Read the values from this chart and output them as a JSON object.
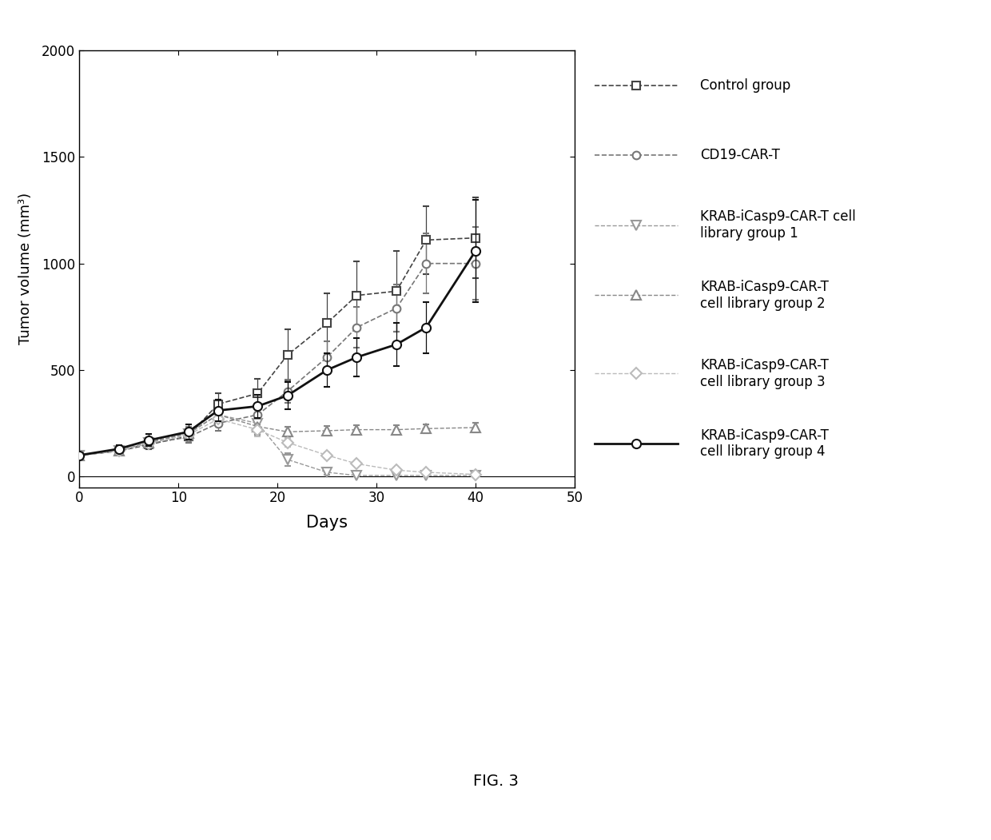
{
  "title": "",
  "xlabel": "Days",
  "ylabel": "Tumor volume (mm³)",
  "xlim": [
    0,
    50
  ],
  "ylim": [
    -50,
    2000
  ],
  "yticks": [
    0,
    500,
    1000,
    1500,
    2000
  ],
  "xticks": [
    0,
    10,
    20,
    30,
    40,
    50
  ],
  "control": {
    "x": [
      0,
      4,
      7,
      11,
      14,
      18,
      21,
      25,
      28,
      32,
      35,
      40
    ],
    "y": [
      100,
      120,
      150,
      190,
      340,
      390,
      570,
      720,
      850,
      870,
      1110,
      1120
    ],
    "yerr": [
      8,
      15,
      20,
      30,
      50,
      70,
      120,
      140,
      160,
      190,
      160,
      190
    ],
    "label": "Control group",
    "color": "#444444",
    "marker": "s",
    "linestyle": "--",
    "linewidth": 1.2,
    "markersize": 7
  },
  "cd19": {
    "x": [
      0,
      4,
      7,
      11,
      14,
      18,
      21,
      25,
      28,
      32,
      35,
      40
    ],
    "y": [
      100,
      120,
      155,
      185,
      250,
      290,
      400,
      560,
      700,
      790,
      1000,
      1000
    ],
    "yerr": [
      8,
      15,
      20,
      28,
      35,
      45,
      55,
      75,
      95,
      110,
      140,
      170
    ],
    "label": "CD19-CAR-T",
    "color": "#777777",
    "marker": "o",
    "linestyle": "--",
    "linewidth": 1.2,
    "markersize": 7
  },
  "group1": {
    "x": [
      0,
      4,
      7,
      11,
      14,
      18,
      21,
      25,
      28,
      32,
      35,
      40
    ],
    "y": [
      100,
      120,
      160,
      200,
      290,
      250,
      80,
      20,
      5,
      5,
      5,
      5
    ],
    "yerr": [
      8,
      15,
      22,
      30,
      45,
      50,
      30,
      10,
      3,
      3,
      3,
      3
    ],
    "label": "KRAB-iCasp9-CAR-T cell\nlibrary group 1",
    "color": "#999999",
    "marker": "v",
    "linestyle": "--",
    "linewidth": 1.0,
    "markersize": 8
  },
  "group2": {
    "x": [
      0,
      4,
      7,
      11,
      14,
      18,
      21,
      25,
      28,
      32,
      35,
      40
    ],
    "y": [
      100,
      120,
      160,
      205,
      290,
      235,
      210,
      215,
      220,
      220,
      225,
      230
    ],
    "yerr": [
      8,
      14,
      20,
      28,
      40,
      38,
      25,
      22,
      20,
      20,
      20,
      22
    ],
    "label": "KRAB-iCasp9-CAR-T\ncell library group 2",
    "color": "#888888",
    "marker": "^",
    "linestyle": "--",
    "linewidth": 1.0,
    "markersize": 8
  },
  "group3": {
    "x": [
      0,
      4,
      7,
      11,
      14,
      18,
      21,
      25,
      28,
      32,
      35,
      40
    ],
    "y": [
      100,
      120,
      155,
      195,
      270,
      220,
      160,
      100,
      60,
      30,
      20,
      10
    ],
    "yerr": [
      8,
      14,
      20,
      28,
      38,
      32,
      22,
      15,
      10,
      7,
      5,
      4
    ],
    "label": "KRAB-iCasp9-CAR-T\ncell library group 3",
    "color": "#bbbbbb",
    "marker": "D",
    "linestyle": "--",
    "linewidth": 1.0,
    "markersize": 7
  },
  "group4": {
    "x": [
      0,
      4,
      7,
      11,
      14,
      18,
      21,
      25,
      28,
      32,
      35,
      40
    ],
    "y": [
      100,
      130,
      170,
      210,
      310,
      330,
      380,
      500,
      560,
      620,
      700,
      1060
    ],
    "yerr": [
      8,
      18,
      28,
      35,
      50,
      55,
      65,
      80,
      90,
      100,
      120,
      240
    ],
    "label": "KRAB-iCasp9-CAR-T\ncell library group 4",
    "color": "#111111",
    "marker": "o",
    "linestyle": "-",
    "linewidth": 2.0,
    "markersize": 8
  },
  "fig_label": "FIG. 3",
  "background_color": "#ffffff",
  "legend_entries": [
    {
      "label": "Control group",
      "color": "#444444",
      "marker": "s",
      "linestyle": "--",
      "linewidth": 1.2,
      "markersize": 7
    },
    {
      "label": "CD19-CAR-T",
      "color": "#777777",
      "marker": "o",
      "linestyle": "--",
      "linewidth": 1.2,
      "markersize": 7
    },
    {
      "label": "KRAB-iCasp9-CAR-T cell\nlibrary group 1",
      "color": "#999999",
      "marker": "v",
      "linestyle": "--",
      "linewidth": 1.0,
      "markersize": 8
    },
    {
      "label": "KRAB-iCasp9-CAR-T\ncell library group 2",
      "color": "#888888",
      "marker": "^",
      "linestyle": "--",
      "linewidth": 1.0,
      "markersize": 8
    },
    {
      "label": "KRAB-iCasp9-CAR-T\ncell library group 3",
      "color": "#bbbbbb",
      "marker": "D",
      "linestyle": "--",
      "linewidth": 1.0,
      "markersize": 7
    },
    {
      "label": "KRAB-iCasp9-CAR-T\ncell library group 4",
      "color": "#111111",
      "marker": "o",
      "linestyle": "-",
      "linewidth": 2.0,
      "markersize": 8
    }
  ]
}
